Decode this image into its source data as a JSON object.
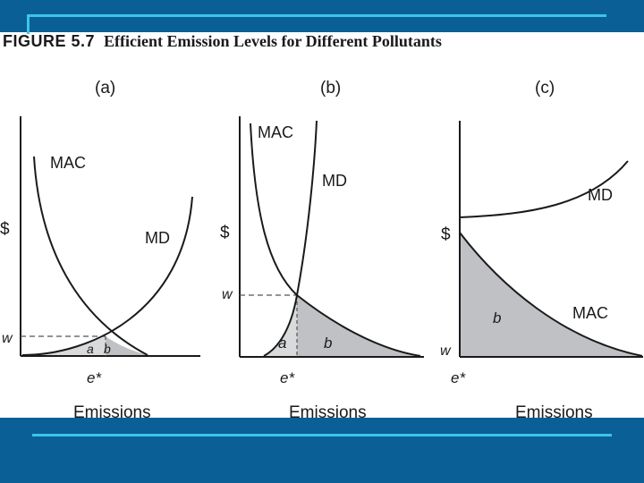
{
  "header": {
    "figure_number": "FIGURE 5.7",
    "figure_title": "Efficient Emission Levels for Different Pollutants"
  },
  "panels": [
    {
      "label": "(a)",
      "y_axis": "$",
      "x_axis": "Emissions",
      "curve_mac": "MAC",
      "curve_md": "MD",
      "price_label": "w",
      "quantity_label": "e*",
      "area_a": "a",
      "area_b": "b"
    },
    {
      "label": "(b)",
      "y_axis": "$",
      "x_axis": "Emissions",
      "curve_mac": "MAC",
      "curve_md": "MD",
      "price_label": "w",
      "quantity_label": "e*",
      "area_a": "a",
      "area_b": "b"
    },
    {
      "label": "(c)",
      "y_axis": "$",
      "x_axis": "Emissions",
      "curve_mac": "MAC",
      "curve_md": "MD",
      "price_label": "w",
      "quantity_label": "e*",
      "area_b": "b"
    }
  ],
  "colors": {
    "band": "#0a5f96",
    "band_line": "#3cc4ec",
    "shade": "#bfc1c4",
    "shade_light": "#d9dadc",
    "curve": "#1a1a1a"
  }
}
